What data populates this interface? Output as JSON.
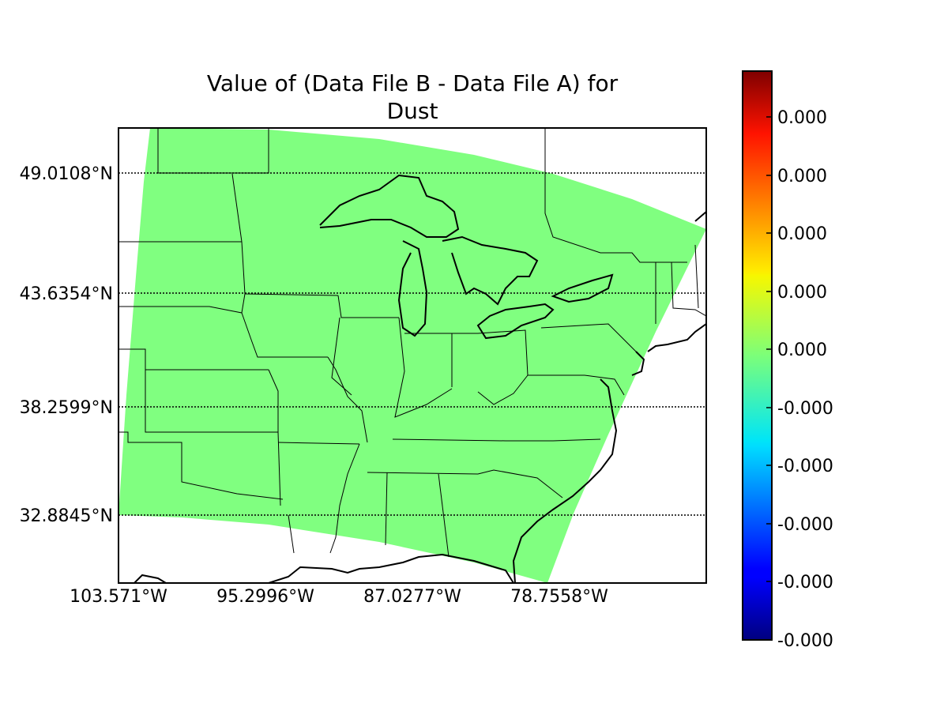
{
  "title_line1": "Value of (Data File B - Data File A) for",
  "title_line2": "Dust",
  "fill_color": "#80ff80",
  "lat_labels": [
    "49.0108°N",
    "43.6354°N",
    "38.2599°N",
    "32.8845°N"
  ],
  "lon_labels": [
    "103.571°W",
    "95.2996°W",
    "87.0277°W",
    "78.7558°W"
  ],
  "colorbar": {
    "colormap": "jet",
    "tick_labels": [
      "0.000",
      "0.000",
      "0.000",
      "0.000",
      "0.000",
      "-0.000",
      "-0.000",
      "-0.000",
      "-0.000",
      "-0.000"
    ]
  }
}
